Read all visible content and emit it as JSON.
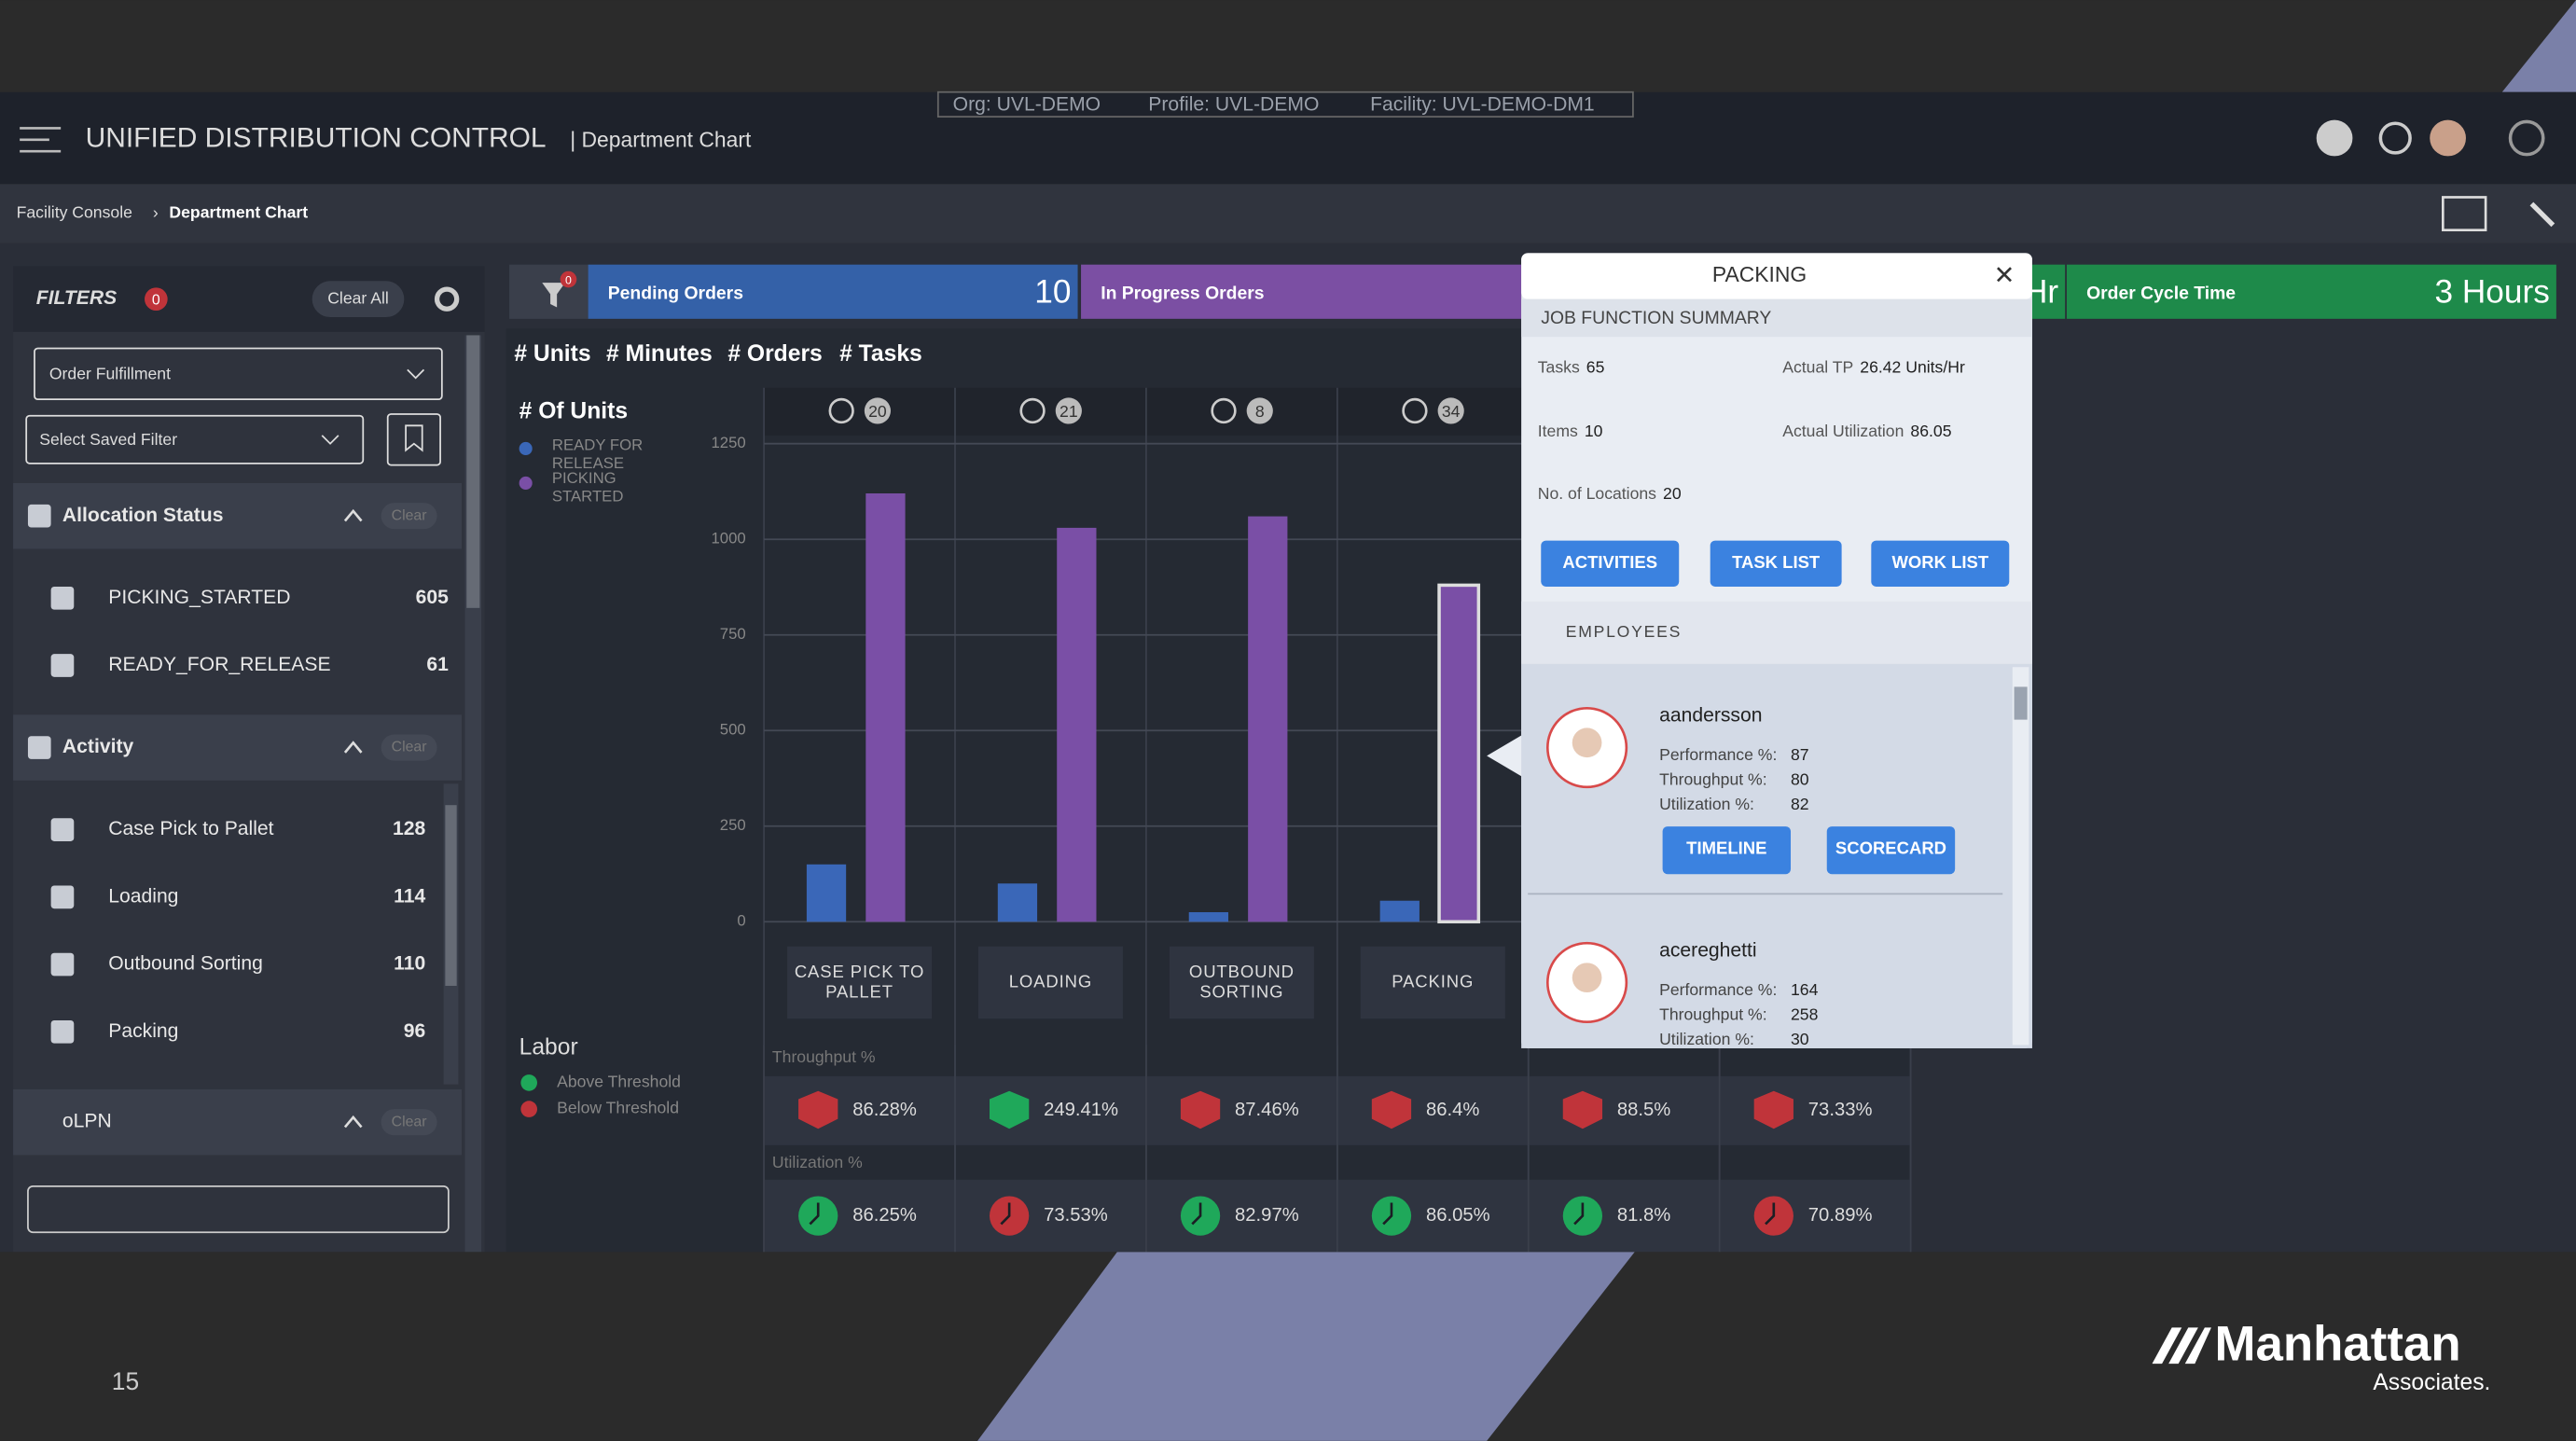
{
  "header": {
    "title": "UNIFIED DISTRIBUTION CONTROL",
    "subtitle": "| Department Chart",
    "context": [
      "Org: UVL-DEMO",
      "Profile: UVL-DEMO",
      "Facility: UVL-DEMO-DM1"
    ]
  },
  "breadcrumb": {
    "parent": "Facility Console",
    "separator": "›",
    "current": "Department Chart"
  },
  "filters": {
    "title": "FILTERS",
    "count": 0,
    "clear_all": "Clear All",
    "order_type": "Order Fulfillment",
    "saved_filter": "Select Saved Filter",
    "groups": [
      {
        "name": "Allocation Status",
        "clear": "Clear",
        "items": [
          {
            "label": "PICKING_STARTED",
            "count": 605
          },
          {
            "label": "READY_FOR_RELEASE",
            "count": 61
          }
        ]
      },
      {
        "name": "Activity",
        "clear": "Clear",
        "items": [
          {
            "label": "Case Pick to Pallet",
            "count": 128
          },
          {
            "label": "Loading",
            "count": 114
          },
          {
            "label": "Outbound Sorting",
            "count": 110
          },
          {
            "label": "Packing",
            "count": 96
          }
        ]
      },
      {
        "name": "oLPN",
        "clear": "Clear"
      }
    ]
  },
  "kpi_filter_count": 0,
  "kpis": [
    {
      "label": "Pending Orders",
      "value": 10,
      "color": "#3461a8"
    },
    {
      "label": "In Progress Orders",
      "color": "#7b4fa3"
    },
    {
      "value": "Hr",
      "color": "#1e8a4a"
    },
    {
      "label": "Order Cycle Time",
      "value": "3 Hours",
      "color": "#1e8a4a"
    }
  ],
  "tabs": [
    "# Units",
    "# Minutes",
    "# Orders",
    "# Tasks"
  ],
  "chart_data": {
    "type": "bar",
    "title": "# Of Units",
    "categories": [
      "CASE PICK TO PALLET",
      "LOADING",
      "OUTBOUND SORTING",
      "PACKING"
    ],
    "headcounts": [
      20,
      21,
      8,
      34
    ],
    "series": [
      {
        "name": "READY FOR RELEASE",
        "color": "#3a67b8",
        "values": [
          150,
          100,
          25,
          55
        ]
      },
      {
        "name": "PICKING STARTED",
        "color": "#7a4fa6",
        "values": [
          1120,
          1030,
          1060,
          880
        ]
      }
    ],
    "ylim": [
      0,
      1250
    ],
    "yticks": [
      0,
      250,
      500,
      750,
      1000,
      1250
    ],
    "grid": true,
    "selected": 3
  },
  "labor": {
    "title": "Labor",
    "legend": [
      {
        "name": "Above Threshold",
        "color": "#1fa85a"
      },
      {
        "name": "Below Threshold",
        "color": "#c0343a"
      }
    ],
    "throughput_label": "Throughput %",
    "utilization_label": "Utilization %",
    "throughput": [
      86.28,
      249.41,
      87.46,
      86.4,
      88.5,
      73.33
    ],
    "throughput_labels": [
      "86.28%",
      "249.41%",
      "87.46%",
      "86.4%",
      "88.5%",
      "73.33%"
    ],
    "throughput_colors": [
      "#c0343a",
      "#1fa85a",
      "#c0343a",
      "#c0343a",
      "#c0343a",
      "#c0343a"
    ],
    "utilization": [
      86.25,
      73.53,
      82.97,
      86.05,
      81.8,
      70.89
    ],
    "utilization_labels": [
      "86.25%",
      "73.53%",
      "82.97%",
      "86.05%",
      "81.8%",
      "70.89%"
    ],
    "utilization_colors": [
      "#1fa85a",
      "#c0343a",
      "#1fa85a",
      "#1fa85a",
      "#1fa85a",
      "#c0343a"
    ]
  },
  "popup": {
    "title": "PACKING",
    "section": "JOB FUNCTION SUMMARY",
    "stats": [
      {
        "label": "Tasks",
        "value": 65
      },
      {
        "label": "Actual TP",
        "value": "26.42 Units/Hr"
      },
      {
        "label": "Items",
        "value": 10
      },
      {
        "label": "Actual Utilization",
        "value": 86.05
      },
      {
        "label": "No. of Locations",
        "value": 20
      }
    ],
    "buttons": [
      "ACTIVITIES",
      "TASK LIST",
      "WORK LIST"
    ],
    "employees_title": "EMPLOYEES",
    "field_labels": [
      "Performance %:",
      "Throughput %:",
      "Utilization %:"
    ],
    "employee_buttons": [
      "TIMELINE",
      "SCORECARD"
    ],
    "employees": [
      {
        "name": "aandersson",
        "performance": 87,
        "throughput": 80,
        "utilization": 82
      },
      {
        "name": "acereghetti",
        "performance": 164,
        "throughput": 258,
        "utilization": 30
      }
    ]
  },
  "footer": {
    "page": 15,
    "brand": "Manhattan",
    "brand_sub": "Associates."
  }
}
